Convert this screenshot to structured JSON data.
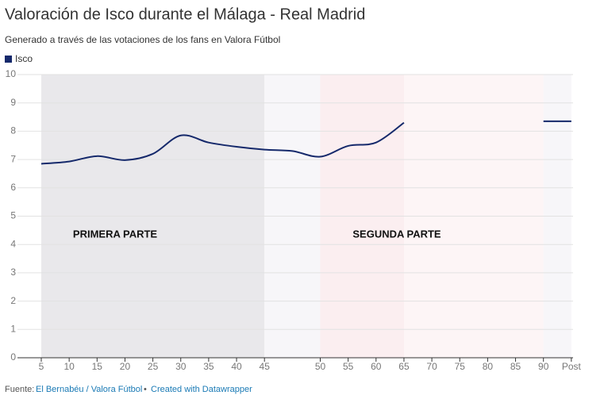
{
  "chart_data": {
    "type": "line",
    "title": "Valoración de Isco durante el Málaga - Real Madrid",
    "subtitle": "Generado a través de las votaciones de los fans en Valora Fútbol",
    "categories": [
      "5",
      "10",
      "15",
      "20",
      "25",
      "30",
      "35",
      "40",
      "45",
      null,
      "50",
      "55",
      "60",
      "65",
      "70",
      "75",
      "80",
      "85",
      "90",
      "Post"
    ],
    "series": [
      {
        "name": "Isco",
        "color": "#15296b",
        "values": [
          6.85,
          6.93,
          7.12,
          6.98,
          7.2,
          7.85,
          7.6,
          7.45,
          7.35,
          7.3,
          7.1,
          7.48,
          7.6,
          8.3,
          null,
          null,
          null,
          null,
          8.35,
          8.35
        ]
      }
    ],
    "ylim": [
      0,
      10
    ],
    "yticks": [
      0,
      1,
      2,
      3,
      4,
      5,
      6,
      7,
      8,
      9,
      10
    ],
    "grid": true,
    "annotations": [
      "PRIMERA PARTE",
      "SEGUNDA PARTE"
    ],
    "footer": {
      "source_label": "Fuente:",
      "source": "El Bernabéu / Valora Fútbol",
      "separator": "•",
      "credit": "Created with Datawrapper"
    }
  }
}
